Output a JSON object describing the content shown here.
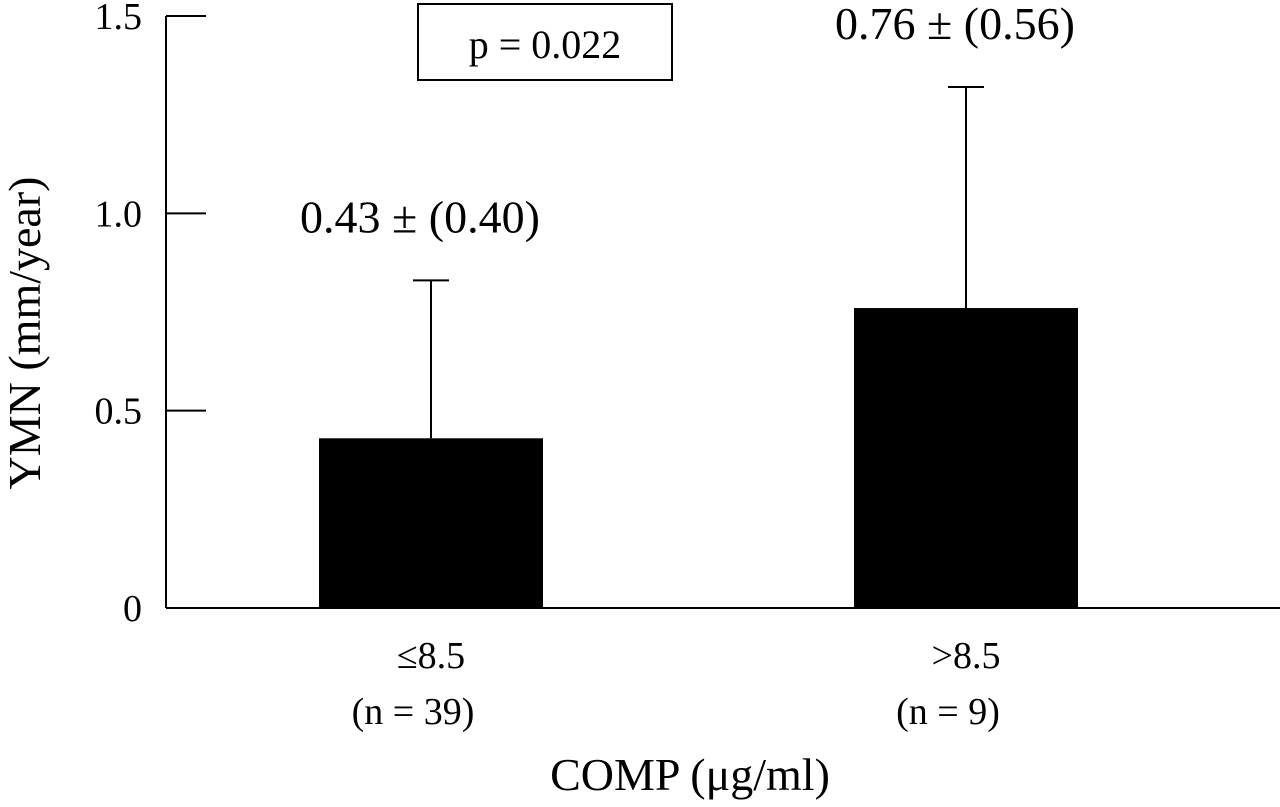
{
  "chart_data": {
    "type": "bar",
    "categories": [
      "≤8.5",
      ">8.5"
    ],
    "category_sublabels": [
      "(n = 39)",
      "(n = 9)"
    ],
    "values": [
      0.43,
      0.76
    ],
    "error_sd": [
      0.4,
      0.56
    ],
    "value_labels": [
      "0.43 ± (0.40)",
      "0.76 ± (0.56)"
    ],
    "xlabel": "COMP (μg/ml)",
    "ylabel": "YMN (mm/year)",
    "ylim": [
      0,
      1.5
    ],
    "yticks": [
      {
        "value": 0,
        "label": "0"
      },
      {
        "value": 0.5,
        "label": "0.5"
      },
      {
        "value": 1.0,
        "label": "1.0"
      },
      {
        "value": 1.5,
        "label": "1.5"
      }
    ],
    "annotation": "p = 0.022",
    "grid": false,
    "bar_color": "#000000"
  }
}
